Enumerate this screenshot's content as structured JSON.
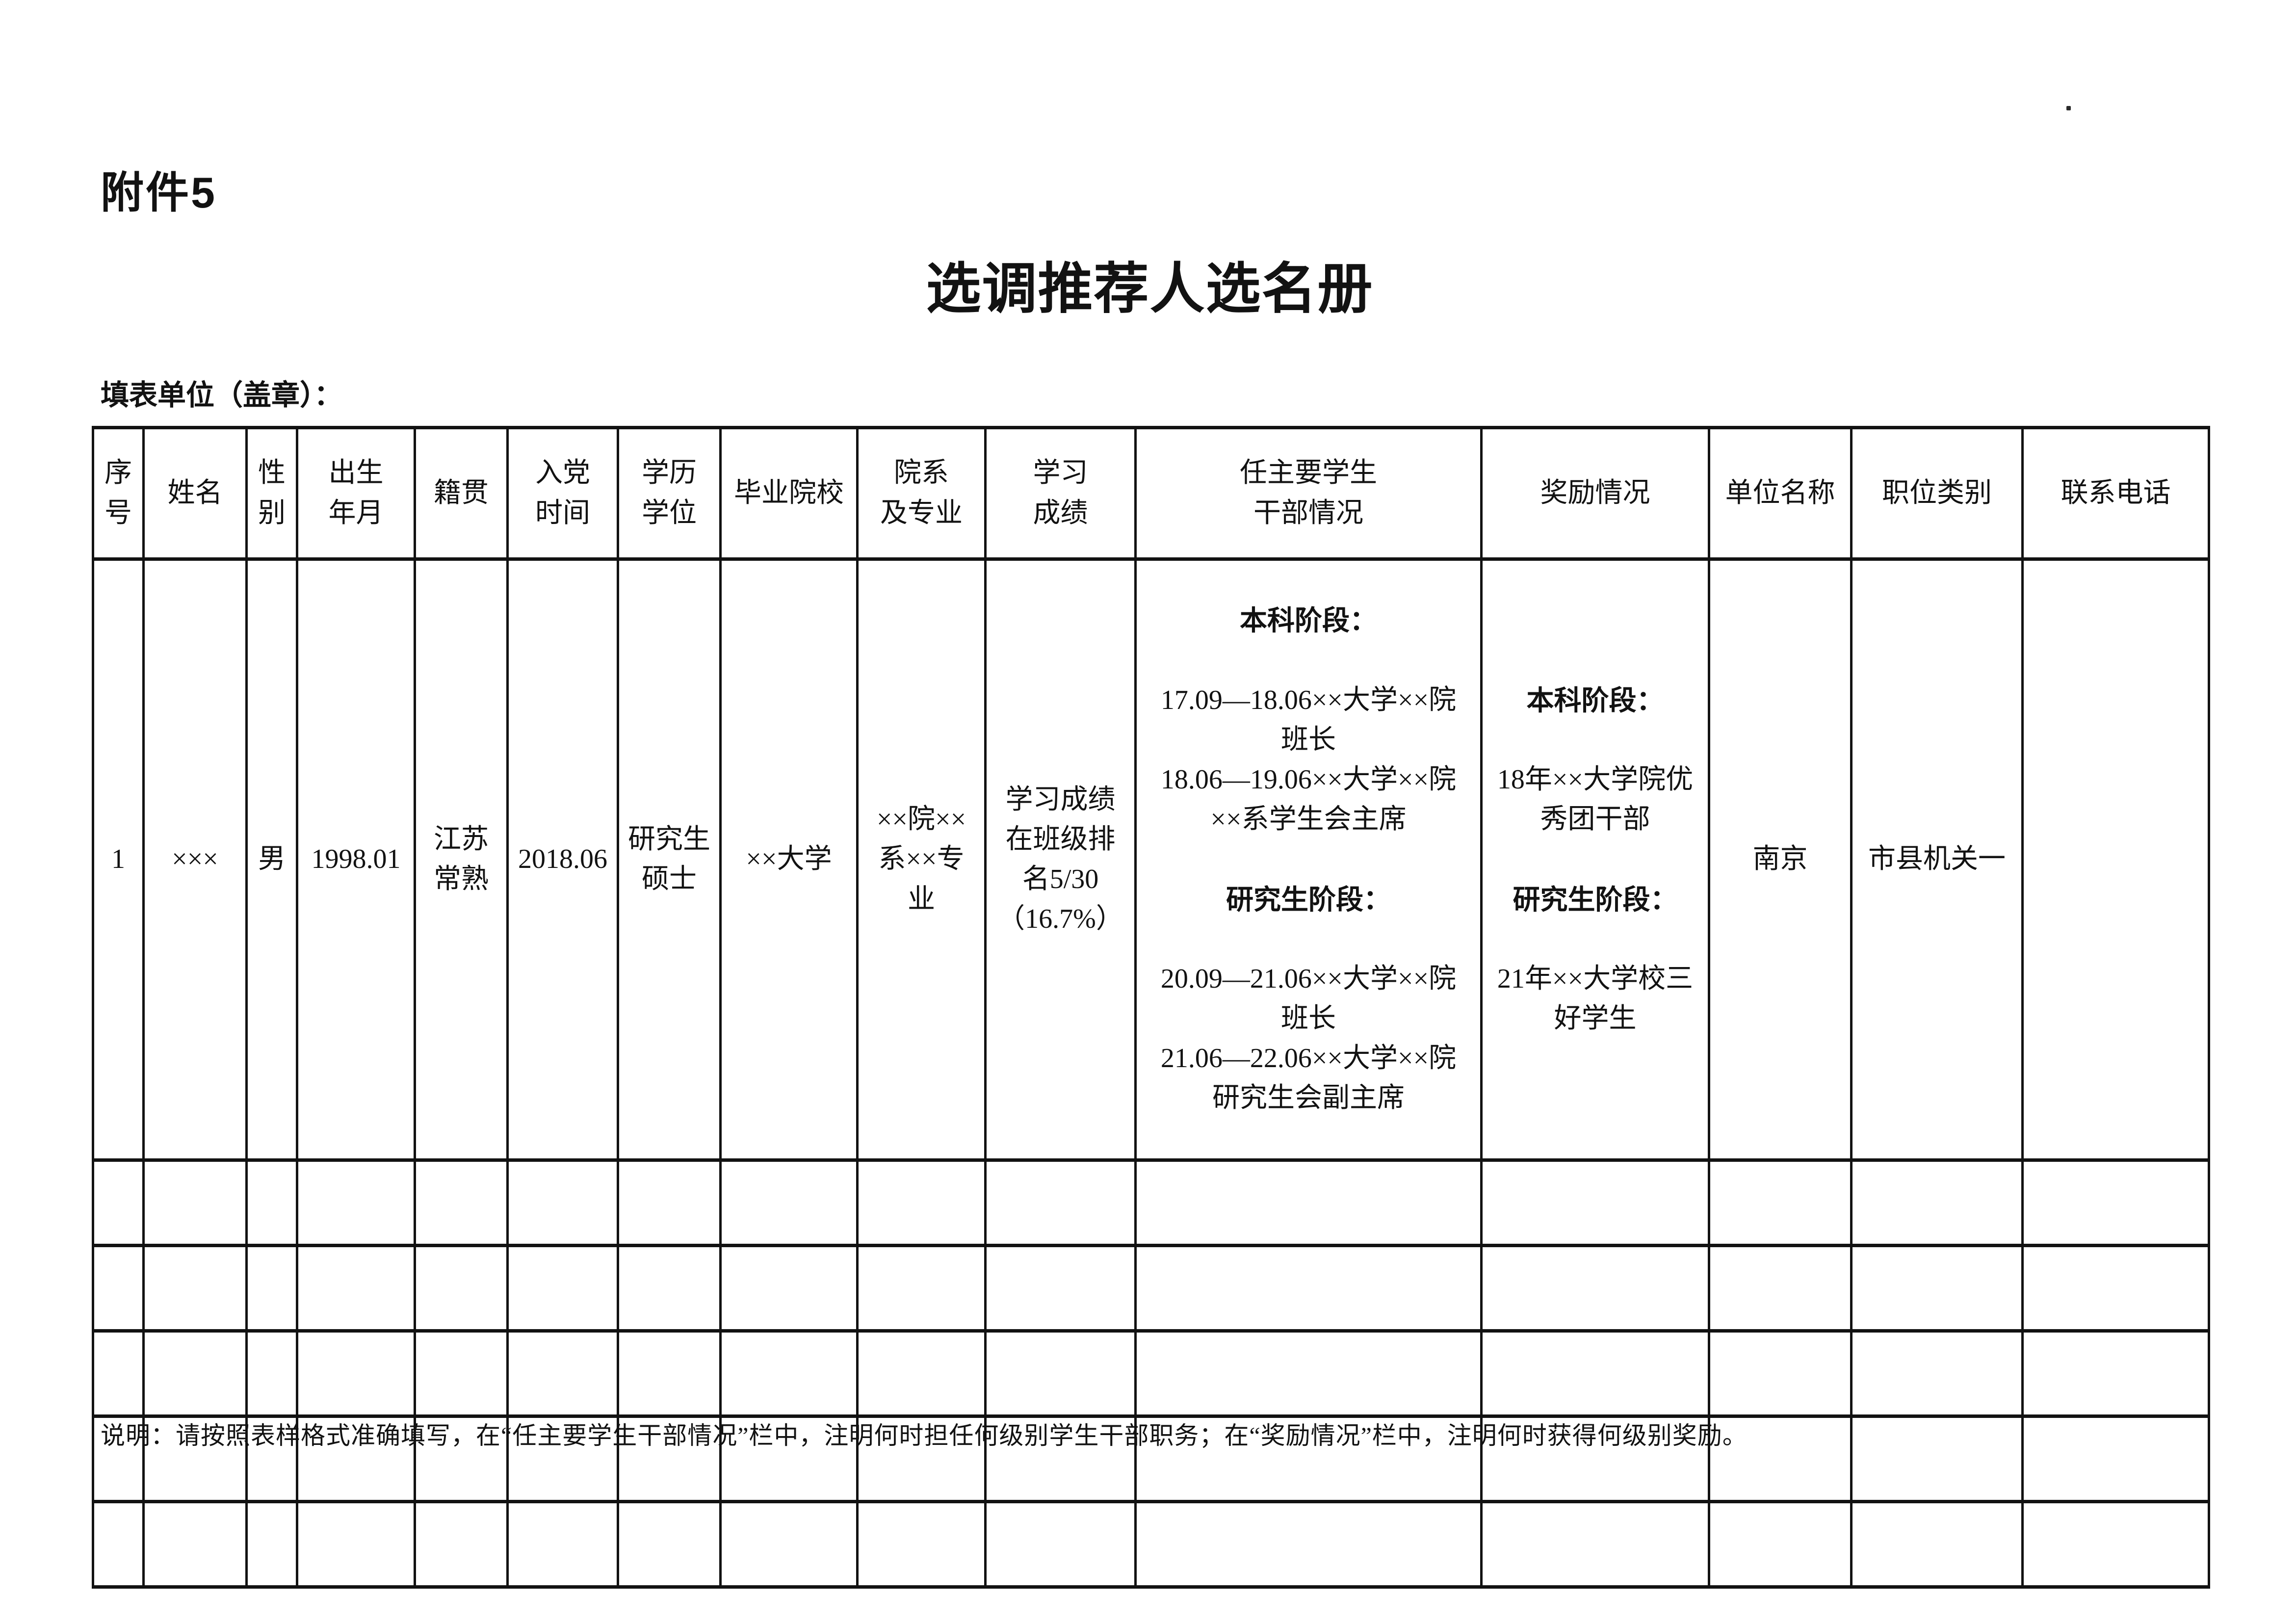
{
  "page": {
    "attachment_label": "附件5",
    "title": "选调推荐人选名册",
    "fill_unit_label": "填表单位（盖章）：",
    "note": "说明：请按照表样格式准确填写，在“任主要学生干部情况”栏中，注明何时担任何级别学生干部职务；在“奖励情况”栏中，注明何时获得何级别奖励。"
  },
  "table": {
    "headers": [
      "序\n号",
      "姓名",
      "性\n别",
      "出生\n年月",
      "籍贯",
      "入党\n时间",
      "学历\n学位",
      "毕业院校",
      "院系\n及专业",
      "学习\n成绩",
      "任主要学生\n干部情况",
      "奖励情况",
      "单位名称",
      "职位类别",
      "联系电话"
    ],
    "empty_row_count": 5,
    "row1": {
      "seq": "1",
      "name": "×××",
      "gender": "男",
      "birth_date": "1998.01",
      "native_place": "江苏\n常熟",
      "party_join_date": "2018.06",
      "degree": "研究生\n硕士",
      "university": "××大学",
      "department_major": "××院××\n系××专\n业",
      "academic_record": "学习成绩\n在班级排\n名5/30\n（16.7%）",
      "cadre_positions": {
        "undergrad_label": "本科阶段：",
        "undergrad_detail": "17.09—18.06××大学××院\n班长\n18.06—19.06××大学××院\n××系学生会主席",
        "grad_label": "研究生阶段：",
        "grad_detail": "20.09—21.06××大学××院\n班长\n21.06—22.06××大学××院\n研究生会副主席"
      },
      "awards": {
        "undergrad_label": "本科阶段：",
        "undergrad_detail": "18年××大学院优\n秀团干部",
        "grad_label": "研究生阶段：",
        "grad_detail": "21年××大学校三\n好学生"
      },
      "unit_name": "南京",
      "position_category": "市县机关一",
      "contact_phone": ""
    }
  }
}
